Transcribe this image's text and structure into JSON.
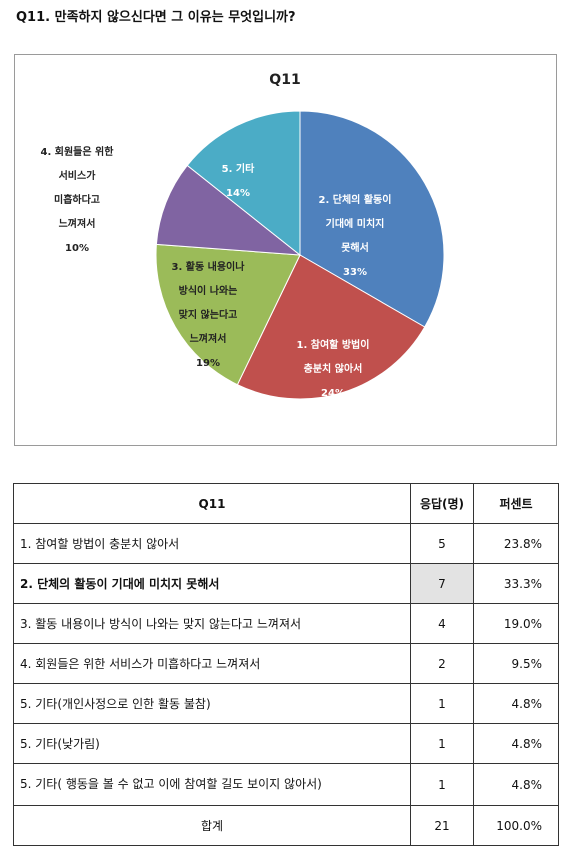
{
  "question": "Q11. 만족하지 않으신다면 그 이유는 무엇입니까?",
  "chart_data": {
    "type": "pie",
    "title": "Q11",
    "slices": [
      {
        "label_lines": [
          "2. 단체의 활동이",
          "기대에 미치지",
          "못해서"
        ],
        "percent_label": "33%",
        "value": 33.3,
        "color": "#4f81bd"
      },
      {
        "label_lines": [
          "1. 참여할 방법이",
          "충분치 않아서"
        ],
        "percent_label": "24%",
        "value": 23.8,
        "color": "#c0504d"
      },
      {
        "label_lines": [
          "3. 활동 내용이나",
          "방식이 나와는",
          "맞지 않는다고",
          "느껴져서"
        ],
        "percent_label": "19%",
        "value": 19.0,
        "color": "#9bbb59"
      },
      {
        "label_lines": [
          "4. 회원들은 위한",
          "서비스가",
          "미흡하다고",
          "느껴져서"
        ],
        "percent_label": "10%",
        "value": 9.5,
        "color": "#8064a2"
      },
      {
        "label_lines": [
          "5. 기타"
        ],
        "percent_label": "14%",
        "value": 14.3,
        "color": "#4bacc6"
      }
    ],
    "legend": "none"
  },
  "table": {
    "headers": [
      "Q11",
      "응답(명)",
      "퍼센트"
    ],
    "rows": [
      {
        "label": "1. 참여할 방법이 충분치 않아서",
        "count": "5",
        "percent": "23.8%"
      },
      {
        "label": "2. 단체의 활동이 기대에 미치지 못해서",
        "count": "7",
        "percent": "33.3%",
        "highlight": true
      },
      {
        "label": "3. 활동 내용이나 방식이 나와는 맞지 않는다고 느껴져서",
        "count": "4",
        "percent": "19.0%"
      },
      {
        "label": "4. 회원들은 위한 서비스가 미흡하다고 느껴져서",
        "count": "2",
        "percent": "9.5%"
      },
      {
        "label": "5. 기타(개인사정으로 인한 활동 불참)",
        "count": "1",
        "percent": "4.8%"
      },
      {
        "label": "5. 기타(낮가림)",
        "count": "1",
        "percent": "4.8%"
      },
      {
        "label": "5. 기타(          행동을 볼 수 없고 이에 참여할 길도 보이지 않아서)",
        "count": "1",
        "percent": "4.8%"
      }
    ],
    "total": {
      "label": "합계",
      "count": "21",
      "percent": "100.0%"
    }
  }
}
